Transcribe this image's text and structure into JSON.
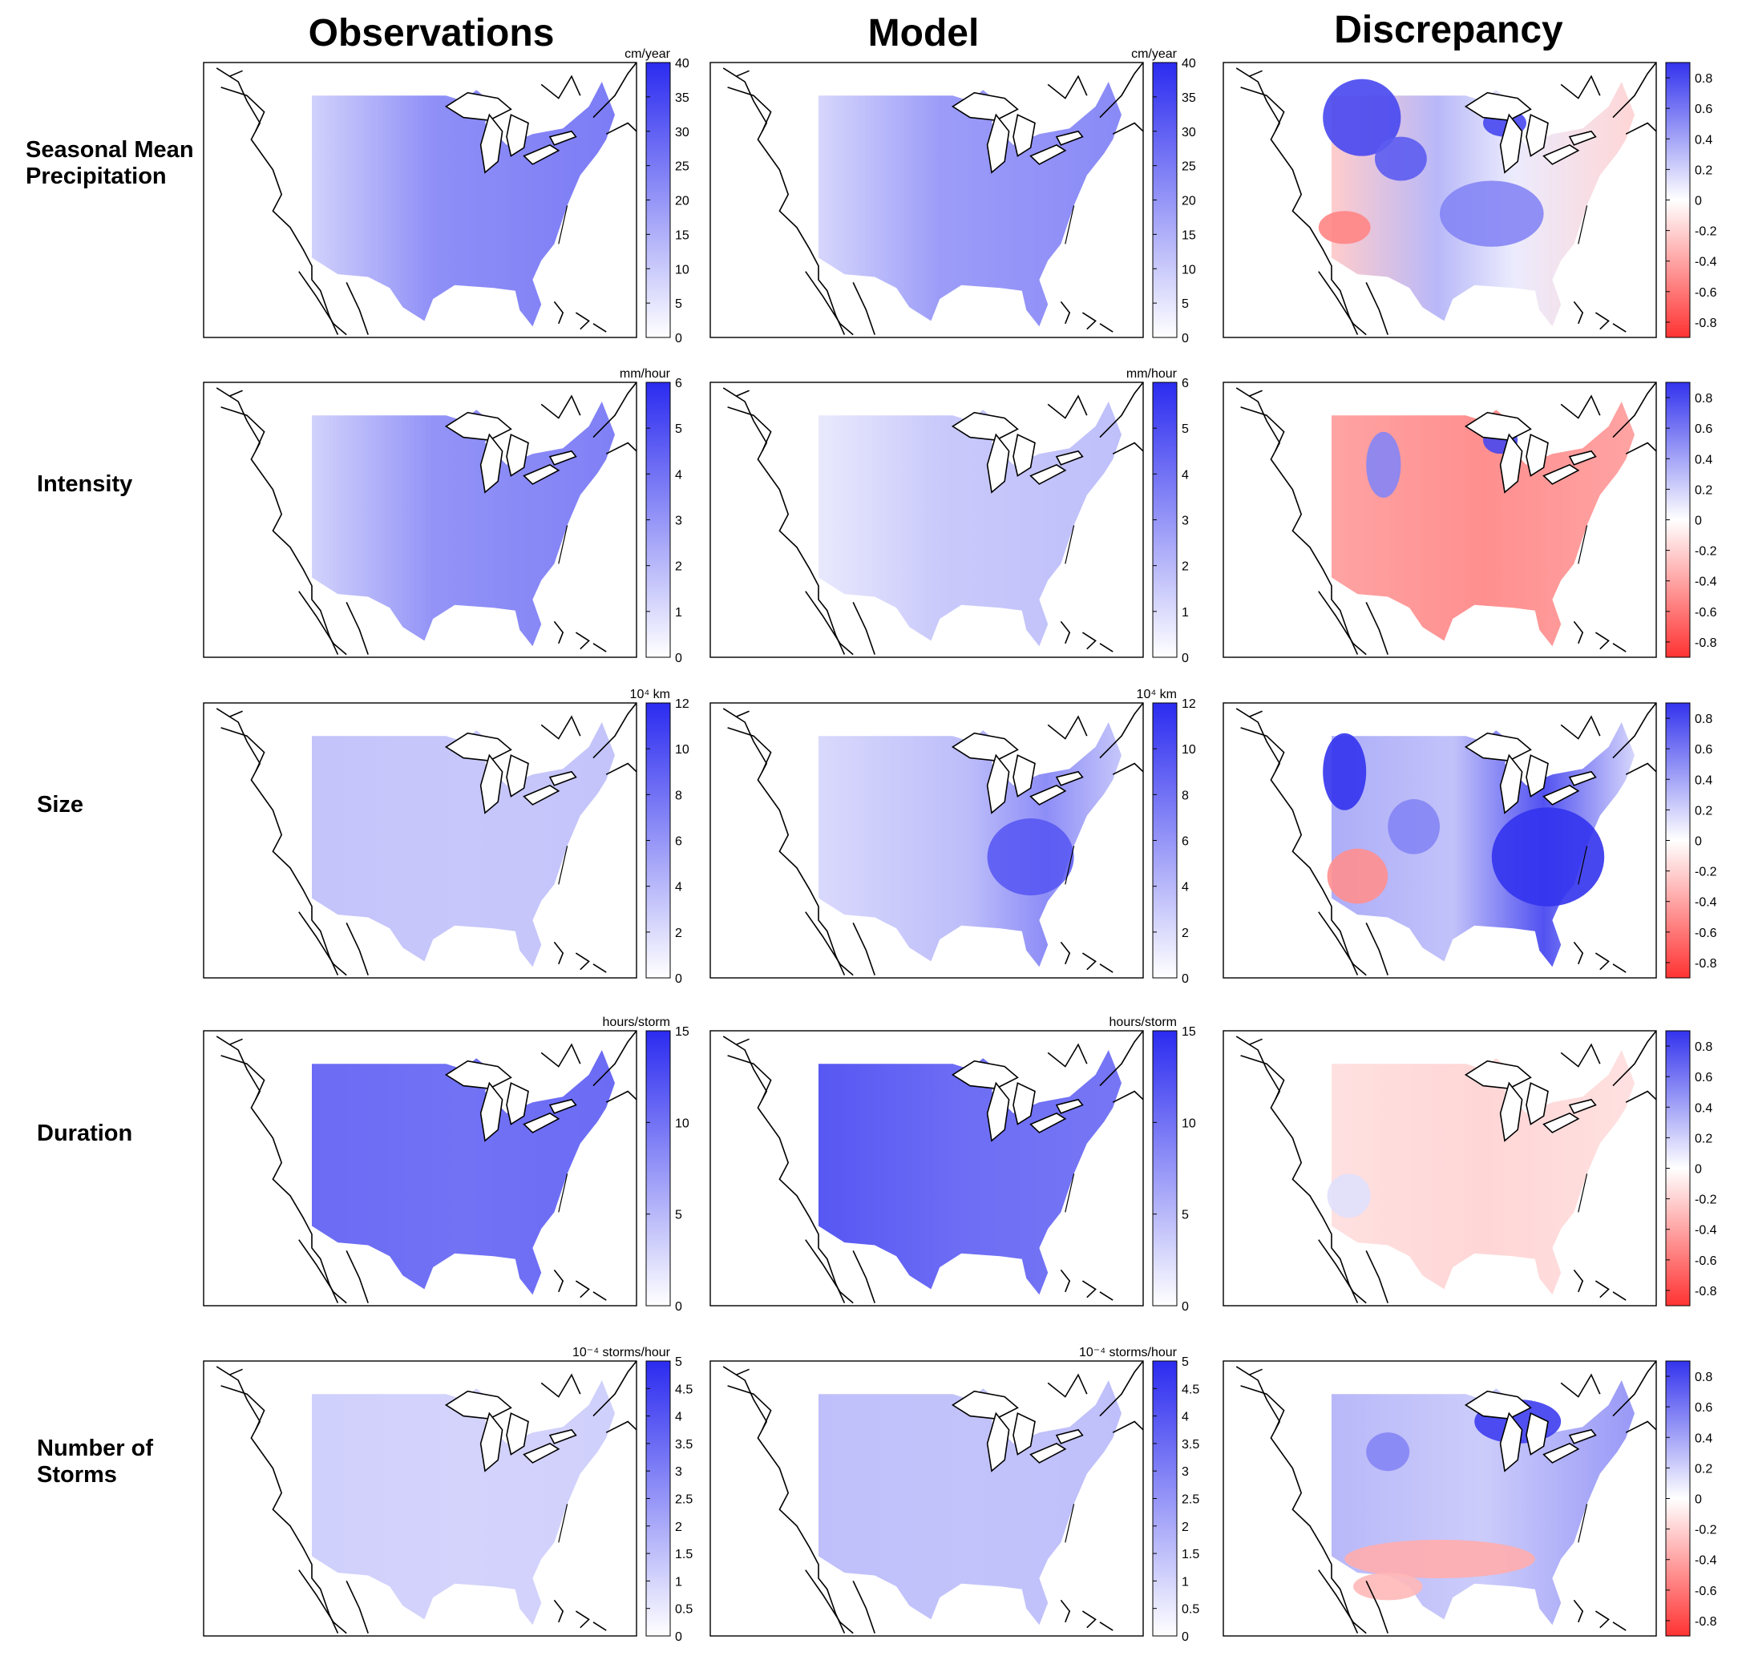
{
  "column_titles": [
    "Observations",
    "Model",
    "Discrepancy"
  ],
  "chart_data": {
    "type": "heatmap",
    "description_rows": [
      "Seasonal Mean Precipitation",
      "Intensity",
      "Size",
      "Duration",
      "Number of Storms"
    ],
    "rows": [
      {
        "label": "Seasonal Mean\nPrecipitation",
        "obs": {
          "unit": "cm/year",
          "range": [
            0,
            40
          ],
          "ticks": [
            "0",
            "5",
            "10",
            "15",
            "20",
            "25",
            "30",
            "35",
            "40"
          ],
          "intensity": 0.62,
          "gradient": "west-light"
        },
        "model": {
          "unit": "cm/year",
          "range": [
            0,
            40
          ],
          "ticks": [
            "0",
            "5",
            "10",
            "15",
            "20",
            "25",
            "30",
            "35",
            "40"
          ],
          "intensity": 0.55,
          "gradient": "west-light"
        },
        "discrepancy": {
          "range": [
            -0.9,
            0.9
          ],
          "ticks": [
            "0.8",
            "0.6",
            "0.4",
            "0.2",
            "0",
            "-0.2",
            "-0.4",
            "-0.6",
            "-0.8"
          ],
          "pattern": "mixed"
        }
      },
      {
        "label": "Intensity",
        "obs": {
          "unit": "mm/hour",
          "range": [
            0,
            6
          ],
          "ticks": [
            "0",
            "1",
            "2",
            "3",
            "4",
            "5",
            "6"
          ],
          "intensity": 0.6,
          "gradient": "west-light"
        },
        "model": {
          "unit": "mm/hour",
          "range": [
            0,
            6
          ],
          "ticks": [
            "0",
            "1",
            "2",
            "3",
            "4",
            "5",
            "6"
          ],
          "intensity": 0.3,
          "gradient": "west-light"
        },
        "discrepancy": {
          "range": [
            -0.9,
            0.9
          ],
          "ticks": [
            "0.8",
            "0.6",
            "0.4",
            "0.2",
            "0",
            "-0.2",
            "-0.4",
            "-0.6",
            "-0.8"
          ],
          "pattern": "red"
        }
      },
      {
        "label": "Size",
        "obs": {
          "unit": "10⁴ km",
          "range": [
            0,
            12
          ],
          "ticks": [
            "0",
            "2",
            "4",
            "6",
            "8",
            "10",
            "12"
          ],
          "intensity": 0.28,
          "gradient": "flat"
        },
        "model": {
          "unit": "10⁴ km",
          "range": [
            0,
            12
          ],
          "ticks": [
            "0",
            "2",
            "4",
            "6",
            "8",
            "10",
            "12"
          ],
          "intensity": 0.45,
          "gradient": "southeast-blob"
        },
        "discrepancy": {
          "range": [
            -0.9,
            0.9
          ],
          "ticks": [
            "0.8",
            "0.6",
            "0.4",
            "0.2",
            "0",
            "-0.2",
            "-0.4",
            "-0.6",
            "-0.8"
          ],
          "pattern": "blue-blobs"
        }
      },
      {
        "label": "Duration",
        "obs": {
          "unit": "hours/storm",
          "range": [
            0,
            15
          ],
          "ticks": [
            "0",
            "5",
            "10",
            "15"
          ],
          "intensity": 0.7,
          "gradient": "flat"
        },
        "model": {
          "unit": "hours/storm",
          "range": [
            0,
            15
          ],
          "ticks": [
            "0",
            "5",
            "10",
            "15"
          ],
          "intensity": 0.72,
          "gradient": "west-dark"
        },
        "discrepancy": {
          "range": [
            -0.9,
            0.9
          ],
          "ticks": [
            "0.8",
            "0.6",
            "0.4",
            "0.2",
            "0",
            "-0.2",
            "-0.4",
            "-0.6",
            "-0.8"
          ],
          "pattern": "light-red"
        }
      },
      {
        "label": "Number of\nStorms",
        "obs": {
          "unit": "10⁻⁴ storms/hour",
          "range": [
            0,
            5
          ],
          "ticks": [
            "0",
            "0.5",
            "1",
            "1.5",
            "2",
            "2.5",
            "3",
            "3.5",
            "4",
            "4.5",
            "5"
          ],
          "intensity": 0.22,
          "gradient": "flat"
        },
        "model": {
          "unit": "10⁻⁴ storms/hour",
          "range": [
            0,
            5
          ],
          "ticks": [
            "0",
            "0.5",
            "1",
            "1.5",
            "2",
            "2.5",
            "3",
            "3.5",
            "4",
            "4.5",
            "5"
          ],
          "intensity": 0.3,
          "gradient": "flat"
        },
        "discrepancy": {
          "range": [
            -0.9,
            0.9
          ],
          "ticks": [
            "0.8",
            "0.6",
            "0.4",
            "0.2",
            "0",
            "-0.2",
            "-0.4",
            "-0.6",
            "-0.8"
          ],
          "pattern": "north-blue-south-red"
        }
      }
    ],
    "colormap_sequential": [
      "#ffffff",
      "#2b2bf0"
    ],
    "colormap_diverging": [
      "#ff3333",
      "#ffffff",
      "#3333ee"
    ]
  }
}
